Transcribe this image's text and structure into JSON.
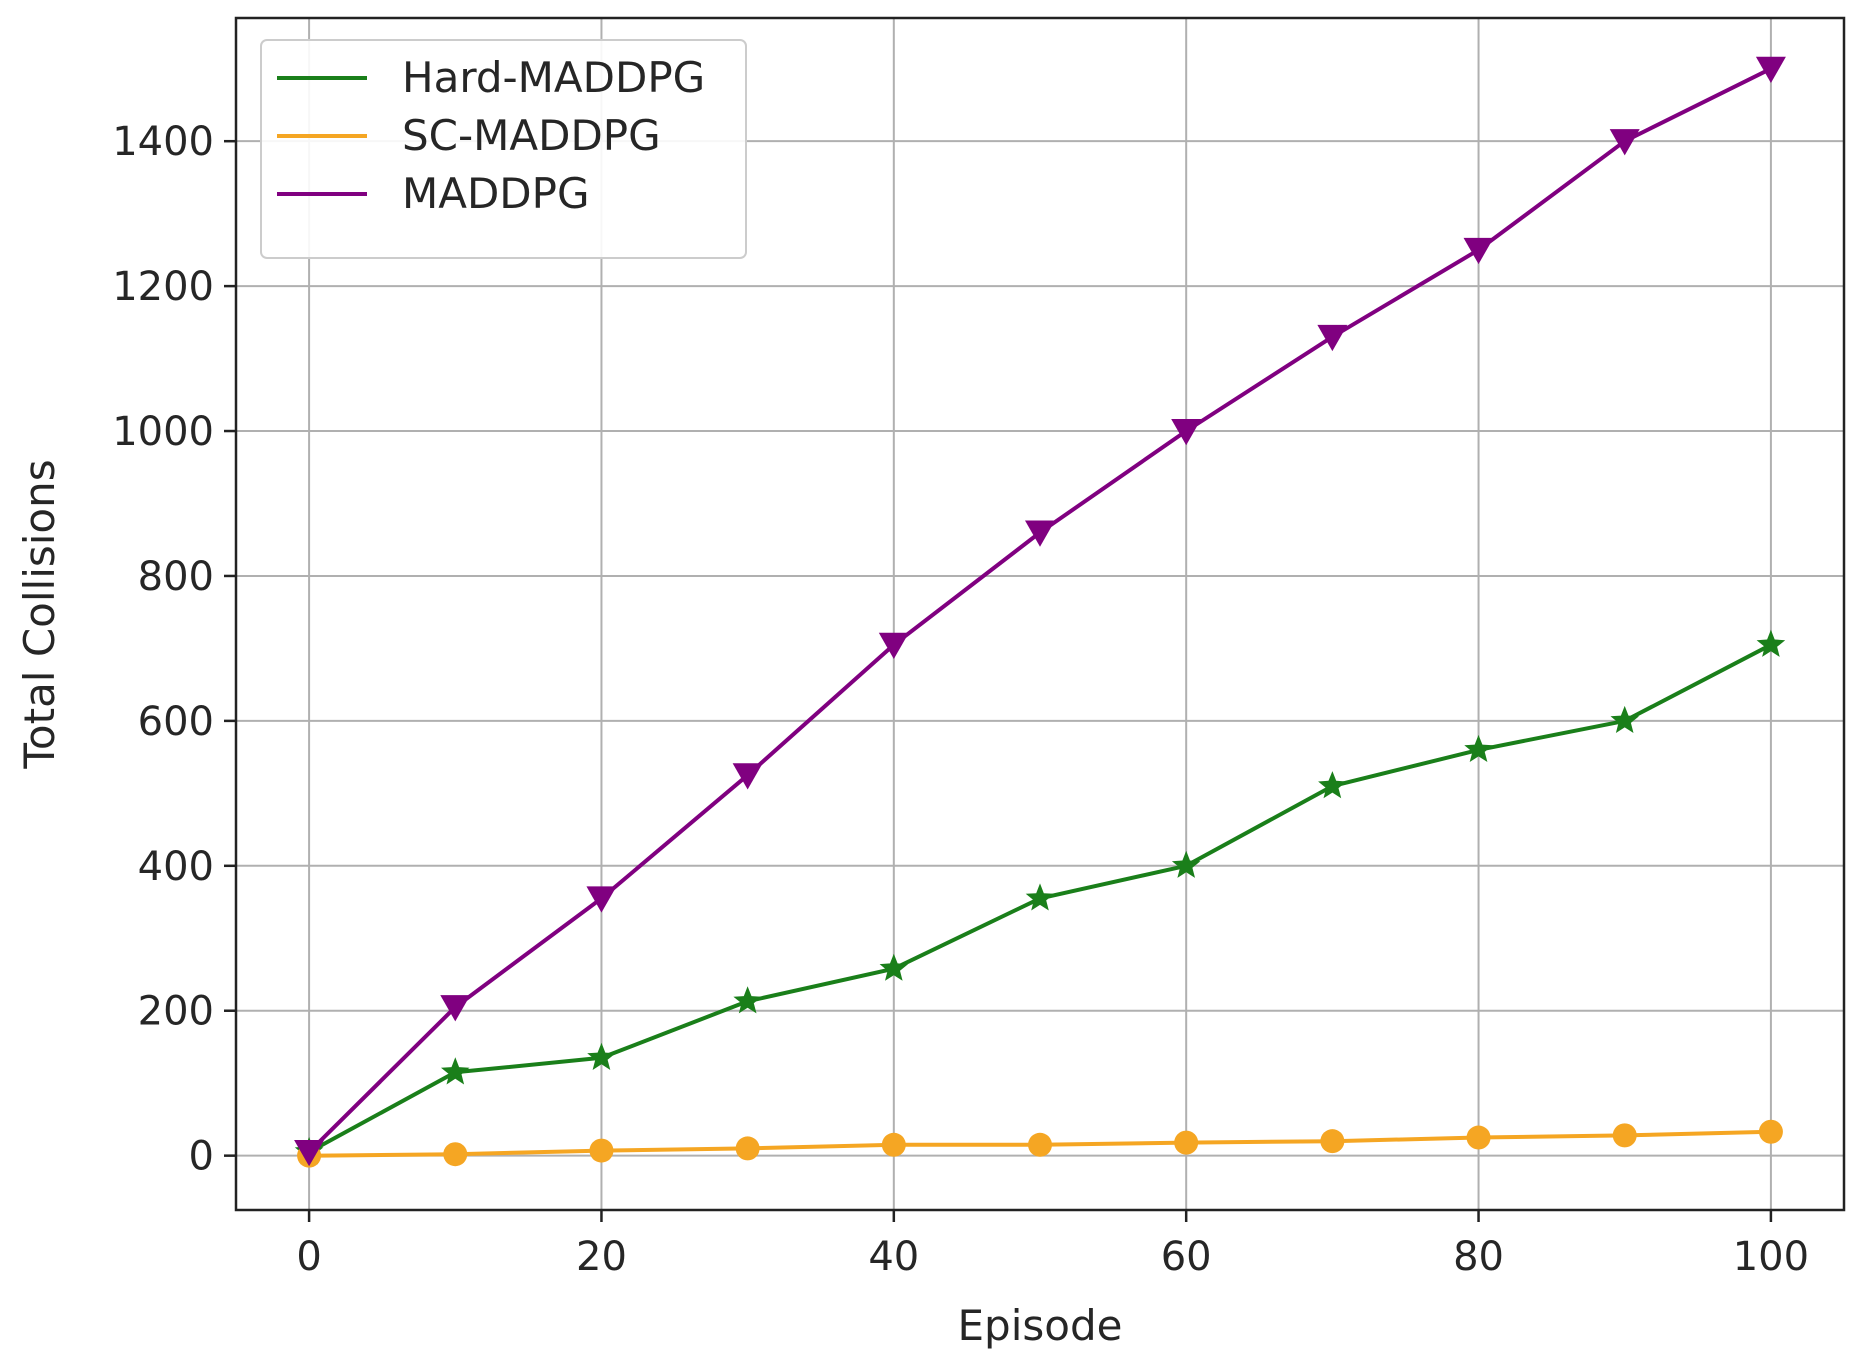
{
  "chart_data": {
    "type": "line",
    "title": "",
    "xlabel": "Episode",
    "ylabel": "Total Collisions",
    "xlim": [
      -5,
      105
    ],
    "ylim": [
      -75,
      1570
    ],
    "xticks": [
      0,
      20,
      40,
      60,
      80,
      100
    ],
    "yticks": [
      0,
      200,
      400,
      600,
      800,
      1000,
      1200,
      1400
    ],
    "grid": true,
    "legend_position": "top-left",
    "x": [
      0,
      10,
      20,
      30,
      40,
      50,
      60,
      70,
      80,
      90,
      100
    ],
    "series": [
      {
        "name": "Hard-MADDPG",
        "color": "#1a7f1a",
        "marker": "star",
        "values": [
          5,
          115,
          135,
          213,
          258,
          355,
          400,
          510,
          560,
          600,
          705
        ]
      },
      {
        "name": "SC-MADDPG",
        "color": "#f5a623",
        "marker": "circle",
        "values": [
          0,
          2,
          7,
          10,
          15,
          15,
          18,
          20,
          25,
          28,
          33
        ]
      },
      {
        "name": "MADDPG",
        "color": "#800080",
        "marker": "triangle-down",
        "values": [
          5,
          205,
          355,
          525,
          705,
          860,
          1000,
          1130,
          1250,
          1400,
          1500
        ]
      }
    ]
  }
}
